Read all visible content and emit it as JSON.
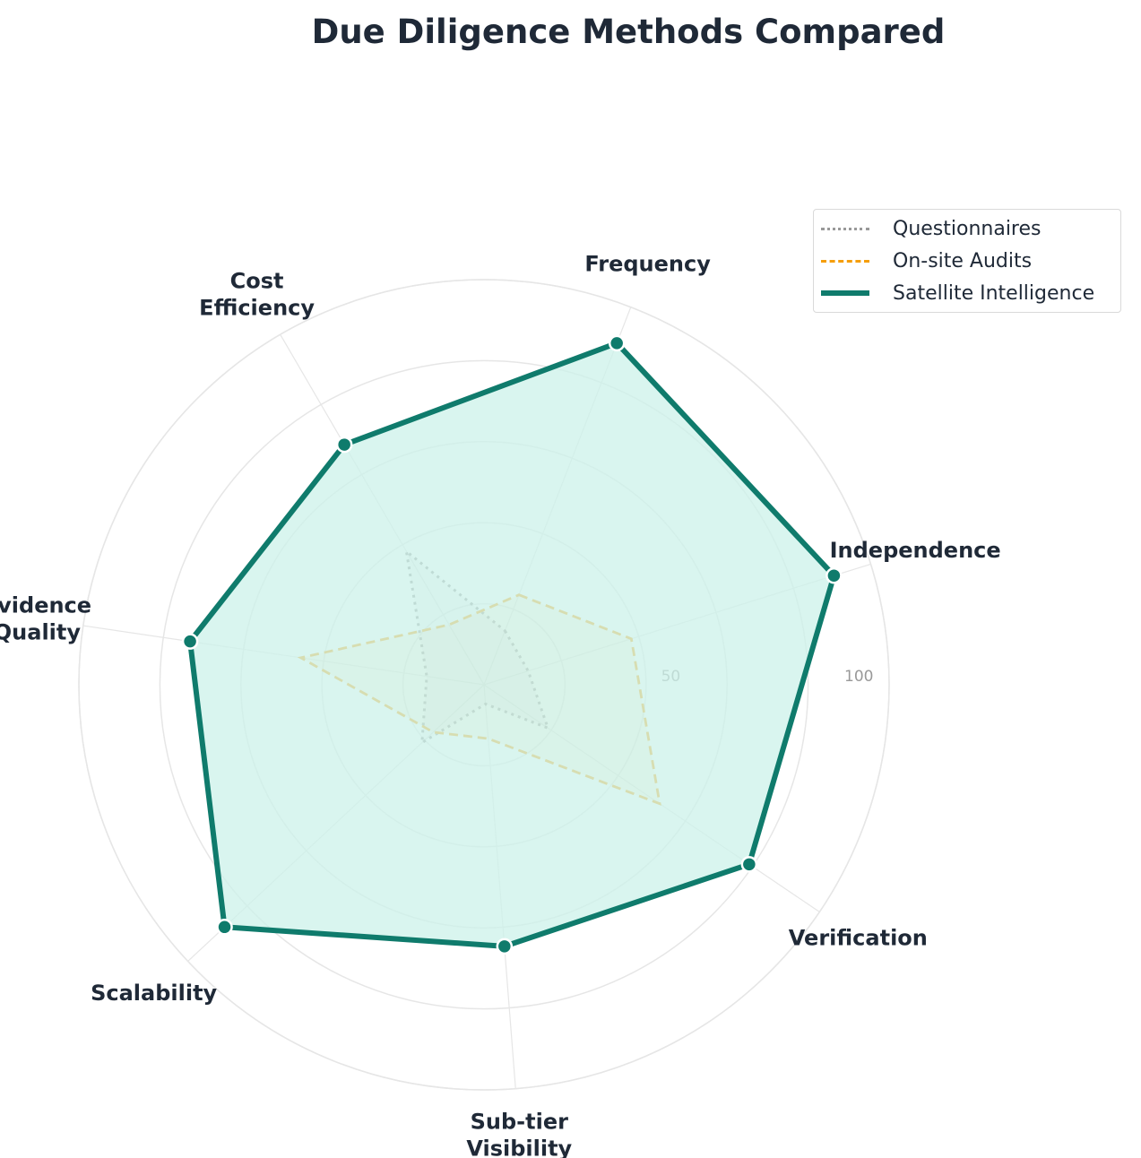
{
  "title": "Due Diligence Methods Compared",
  "chart_data": {
    "type": "radar",
    "title": "Due Diligence Methods Compared",
    "axes": [
      "Frequency",
      "Independence",
      "Verification",
      "Sub-tier\nVisibility",
      "Scalability",
      "Evidence\nQuality",
      "Cost\nEfficiency"
    ],
    "rlim": [
      0,
      105
    ],
    "radial_ticks": [
      50,
      100
    ],
    "grid": true,
    "legend_position": "top-right",
    "series": [
      {
        "name": "Questionnaires",
        "values": [
          15,
          12,
          20,
          5,
          22,
          15,
          40
        ],
        "color": "#999999",
        "style": "dotted"
      },
      {
        "name": "On-site Audits",
        "values": [
          25,
          40,
          55,
          14,
          18,
          48,
          18
        ],
        "color": "#f59e0b",
        "style": "dashed"
      },
      {
        "name": "Satellite Intelligence",
        "values": [
          95,
          95,
          83,
          68,
          92,
          77,
          72
        ],
        "color": "#0f7b6c",
        "style": "solid",
        "fill": "#ccf2e9"
      }
    ]
  }
}
